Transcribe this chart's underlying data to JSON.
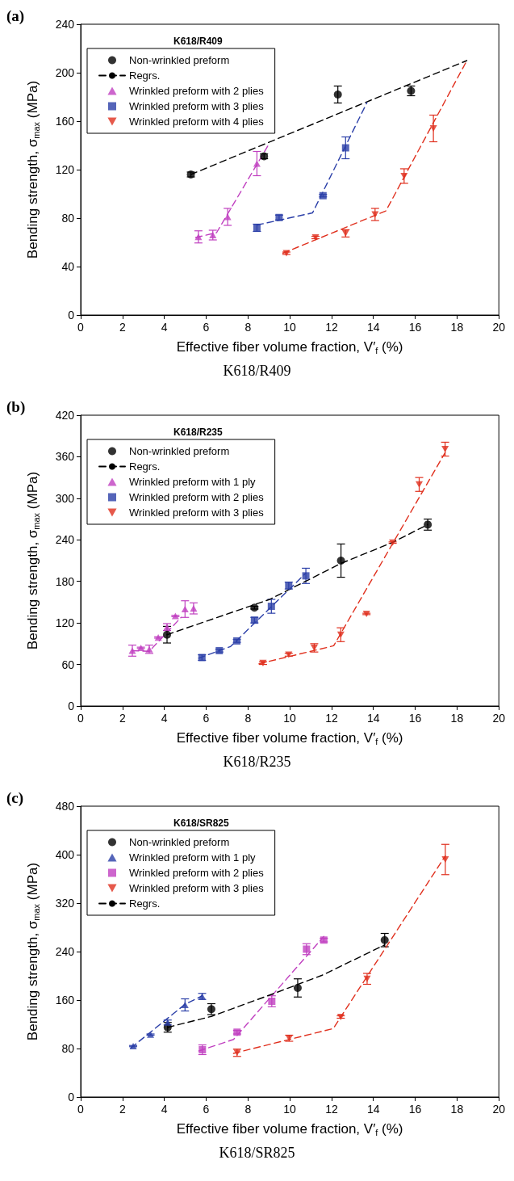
{
  "chart_data": [
    {
      "type": "scatter",
      "title": "K618/R409",
      "xlabel": "Effective fiber volume fraction, V′$_{f}$ (%)",
      "ylabel": "Bending strength, σ$_{max}$ (MPa)",
      "annotations": [
        "(a)",
        "K618/R409"
      ],
      "xlim": [
        0,
        20
      ],
      "xticks": [
        0,
        2,
        4,
        6,
        8,
        10,
        12,
        14,
        16,
        18,
        20
      ],
      "ylim": [
        0,
        240
      ],
      "yticks": [
        0,
        40,
        80,
        120,
        160,
        200,
        240
      ],
      "grid": false,
      "legend": "top left",
      "series": [
        {
          "name": "Non-wrinkled preform",
          "marker": "circle",
          "color": "#000000",
          "x": [
            5.27,
            8.77,
            12.3,
            15.8
          ],
          "values": [
            116,
            131,
            182,
            185
          ],
          "errors": [
            2,
            2,
            7,
            4
          ]
        },
        {
          "name": "Regrs.",
          "type": "line",
          "marker": "none",
          "line_style": "dashed",
          "color": "#000000",
          "x": [
            5.27,
            18.47
          ],
          "values": [
            116,
            210
          ]
        },
        {
          "name": "Wrinkled preform with 2 plies",
          "marker": "triangle",
          "color": "#c040c0",
          "x": [
            5.63,
            6.32,
            7.03,
            8.43
          ],
          "values": [
            64.5,
            66,
            81,
            125
          ],
          "errors": [
            5,
            4,
            7,
            10
          ]
        },
        {
          "type": "line",
          "marker": "none",
          "line_style": "dashed",
          "color": "#c040c0",
          "x": [
            5.5,
            6.5,
            9.0
          ],
          "values": [
            64,
            68,
            141
          ]
        },
        {
          "name": "Wrinkled preform with 3 plies",
          "marker": "square",
          "color": "#2b3fa8",
          "x": [
            8.43,
            9.49,
            11.59,
            12.67
          ],
          "values": [
            72,
            80.5,
            98.5,
            138
          ],
          "errors": [
            3,
            2,
            1,
            9
          ]
        },
        {
          "type": "line",
          "marker": "none",
          "line_style": "dashed",
          "color": "#2b3fa8",
          "x": [
            8.43,
            11.09,
            13.69
          ],
          "values": [
            74.3,
            84.3,
            175.3
          ]
        },
        {
          "name": "Wrinkled preform with 4 plies",
          "marker": "triangle-down",
          "color": "#e0301e",
          "x": [
            9.84,
            11.23,
            12.67,
            14.08,
            15.47,
            16.87
          ],
          "values": [
            51,
            64,
            67.4,
            83,
            114.7,
            154
          ],
          "errors": [
            1,
            1,
            3,
            5,
            6,
            11
          ]
        },
        {
          "type": "line",
          "marker": "none",
          "line_style": "dashed",
          "color": "#e0301e",
          "x": [
            9.67,
            14.6,
            18.47
          ],
          "values": [
            51,
            86,
            210
          ]
        }
      ]
    },
    {
      "type": "scatter",
      "title": "K618/R235",
      "xlabel": "Effective fiber volume fraction, V′$_{f}$ (%)",
      "ylabel": "Bending strength, σ$_{max}$ (MPa)",
      "annotations": [
        "(b)",
        "K618/R235"
      ],
      "xlim": [
        0,
        20
      ],
      "xticks": [
        0,
        2,
        4,
        6,
        8,
        10,
        12,
        14,
        16,
        18,
        20
      ],
      "ylim": [
        0,
        420
      ],
      "yticks": [
        0,
        60,
        120,
        180,
        240,
        300,
        360,
        420
      ],
      "grid": false,
      "legend": "top left",
      "series": [
        {
          "name": "Non-wrinkled preform",
          "marker": "circle",
          "color": "#000000",
          "x": [
            4.13,
            8.31,
            12.45,
            16.6
          ],
          "values": [
            103,
            142,
            210,
            262
          ],
          "errors": [
            12,
            2,
            24,
            8
          ]
        },
        {
          "name": "Regrs.",
          "type": "line",
          "marker": "none",
          "line_style": "dashed",
          "color": "#000000",
          "x": [
            4.13,
            9.04,
            12.45,
            14.9,
            16.6
          ],
          "values": [
            103,
            154,
            206,
            236,
            262
          ]
        },
        {
          "name": "Wrinkled preform with 1 ply",
          "marker": "triangle",
          "color": "#c040c0",
          "x": [
            2.47,
            2.88,
            3.28,
            3.71,
            4.13,
            4.53,
            4.99,
            5.4
          ],
          "values": [
            80,
            84,
            82,
            99,
            114,
            130,
            140,
            141
          ],
          "errors": [
            8,
            1,
            6,
            1,
            5,
            1,
            12,
            8
          ]
        },
        {
          "type": "line",
          "marker": "none",
          "line_style": "dashed",
          "color": "#c040c0",
          "x": [
            2.47,
            3.28,
            4.8
          ],
          "values": [
            80,
            79,
            128
          ]
        },
        {
          "name": "Wrinkled preform with 2 plies",
          "marker": "square",
          "color": "#2b3fa8",
          "x": [
            5.8,
            6.63,
            7.47,
            8.31,
            9.12,
            9.95,
            10.77
          ],
          "values": [
            70,
            80,
            94,
            124,
            144,
            174,
            188
          ],
          "errors": [
            4,
            2,
            2,
            4,
            10,
            5,
            11
          ]
        },
        {
          "type": "line",
          "marker": "none",
          "line_style": "dashed",
          "color": "#2b3fa8",
          "x": [
            5.64,
            7.17,
            10.77
          ],
          "values": [
            69,
            86,
            192
          ]
        },
        {
          "name": "Wrinkled preform with 3 plies",
          "marker": "triangle-down",
          "color": "#e0301e",
          "x": [
            8.72,
            9.95,
            11.17,
            12.44,
            13.67,
            14.92,
            16.19,
            17.43
          ],
          "values": [
            62,
            74,
            84,
            103,
            133,
            236,
            320,
            371
          ],
          "errors": [
            2,
            2,
            6,
            10,
            1,
            1,
            10,
            10
          ]
        },
        {
          "type": "line",
          "marker": "none",
          "line_style": "dashed",
          "color": "#e0301e",
          "x": [
            8.53,
            12.1,
            17.43
          ],
          "values": [
            61,
            87,
            366
          ]
        }
      ]
    },
    {
      "type": "scatter",
      "title": "K618/SR825",
      "xlabel": "Effective fiber volume fraction, V′$_{f}$ (%)",
      "ylabel": "Bending strength, σ$_{max}$ (MPa)",
      "annotations": [
        "(c)",
        "K618/SR825"
      ],
      "xlim": [
        0,
        20
      ],
      "xticks": [
        0,
        2,
        4,
        6,
        8,
        10,
        12,
        14,
        16,
        18,
        20
      ],
      "ylim": [
        0,
        480
      ],
      "yticks": [
        0,
        80,
        160,
        240,
        320,
        400,
        480
      ],
      "grid": false,
      "legend": "top left",
      "series": [
        {
          "name": "Non-wrinkled preform",
          "marker": "circle",
          "color": "#000000",
          "x": [
            4.16,
            6.25,
            10.38,
            14.54
          ],
          "values": [
            115,
            145,
            180,
            259
          ],
          "errors": [
            8,
            9,
            15,
            11
          ]
        },
        {
          "name": "Wrinkled preform with 1 ply",
          "marker": "triangle",
          "color": "#2b3fa8",
          "x": [
            2.51,
            3.34,
            4.16,
            4.99,
            5.81
          ],
          "values": [
            84,
            103,
            123,
            152,
            166
          ],
          "errors": [
            1,
            1,
            4,
            10,
            5
          ]
        },
        {
          "type": "line",
          "marker": "none",
          "line_style": "dashed",
          "color": "#2b3fa8",
          "x": [
            2.4,
            4.99,
            5.81
          ],
          "values": [
            81,
            153,
            167
          ]
        },
        {
          "name": "Wrinkled preform with 2 plies",
          "marker": "square",
          "color": "#c040c0",
          "x": [
            5.82,
            7.48,
            9.14,
            10.8,
            11.63
          ],
          "values": [
            78,
            107,
            158,
            244,
            259
          ],
          "errors": [
            8,
            3,
            9,
            9,
            3
          ]
        },
        {
          "type": "line",
          "marker": "none",
          "line_style": "dashed",
          "color": "#c040c0",
          "x": [
            5.65,
            7.31,
            11.63
          ],
          "values": [
            76,
            95,
            265
          ]
        },
        {
          "name": "Wrinkled preform with 3 plies",
          "marker": "triangle-down",
          "color": "#e0301e",
          "x": [
            7.48,
            9.97,
            12.44,
            13.7,
            17.44
          ],
          "values": [
            73,
            97,
            132,
            195,
            392
          ],
          "errors": [
            6,
            5,
            2,
            9,
            25
          ]
        },
        {
          "type": "line",
          "marker": "none",
          "line_style": "dashed",
          "color": "#e0301e",
          "x": [
            7.31,
            12.08,
            17.44
          ],
          "values": [
            72,
            113,
            398
          ]
        },
        {
          "name": "Regrs.",
          "type": "line",
          "marker": "none",
          "line_style": "dashed",
          "color": "#000000",
          "x": [
            4.16,
            6.25,
            9.1,
            11.55,
            14.54
          ],
          "values": [
            115,
            133,
            169,
            201,
            251
          ]
        }
      ]
    }
  ]
}
